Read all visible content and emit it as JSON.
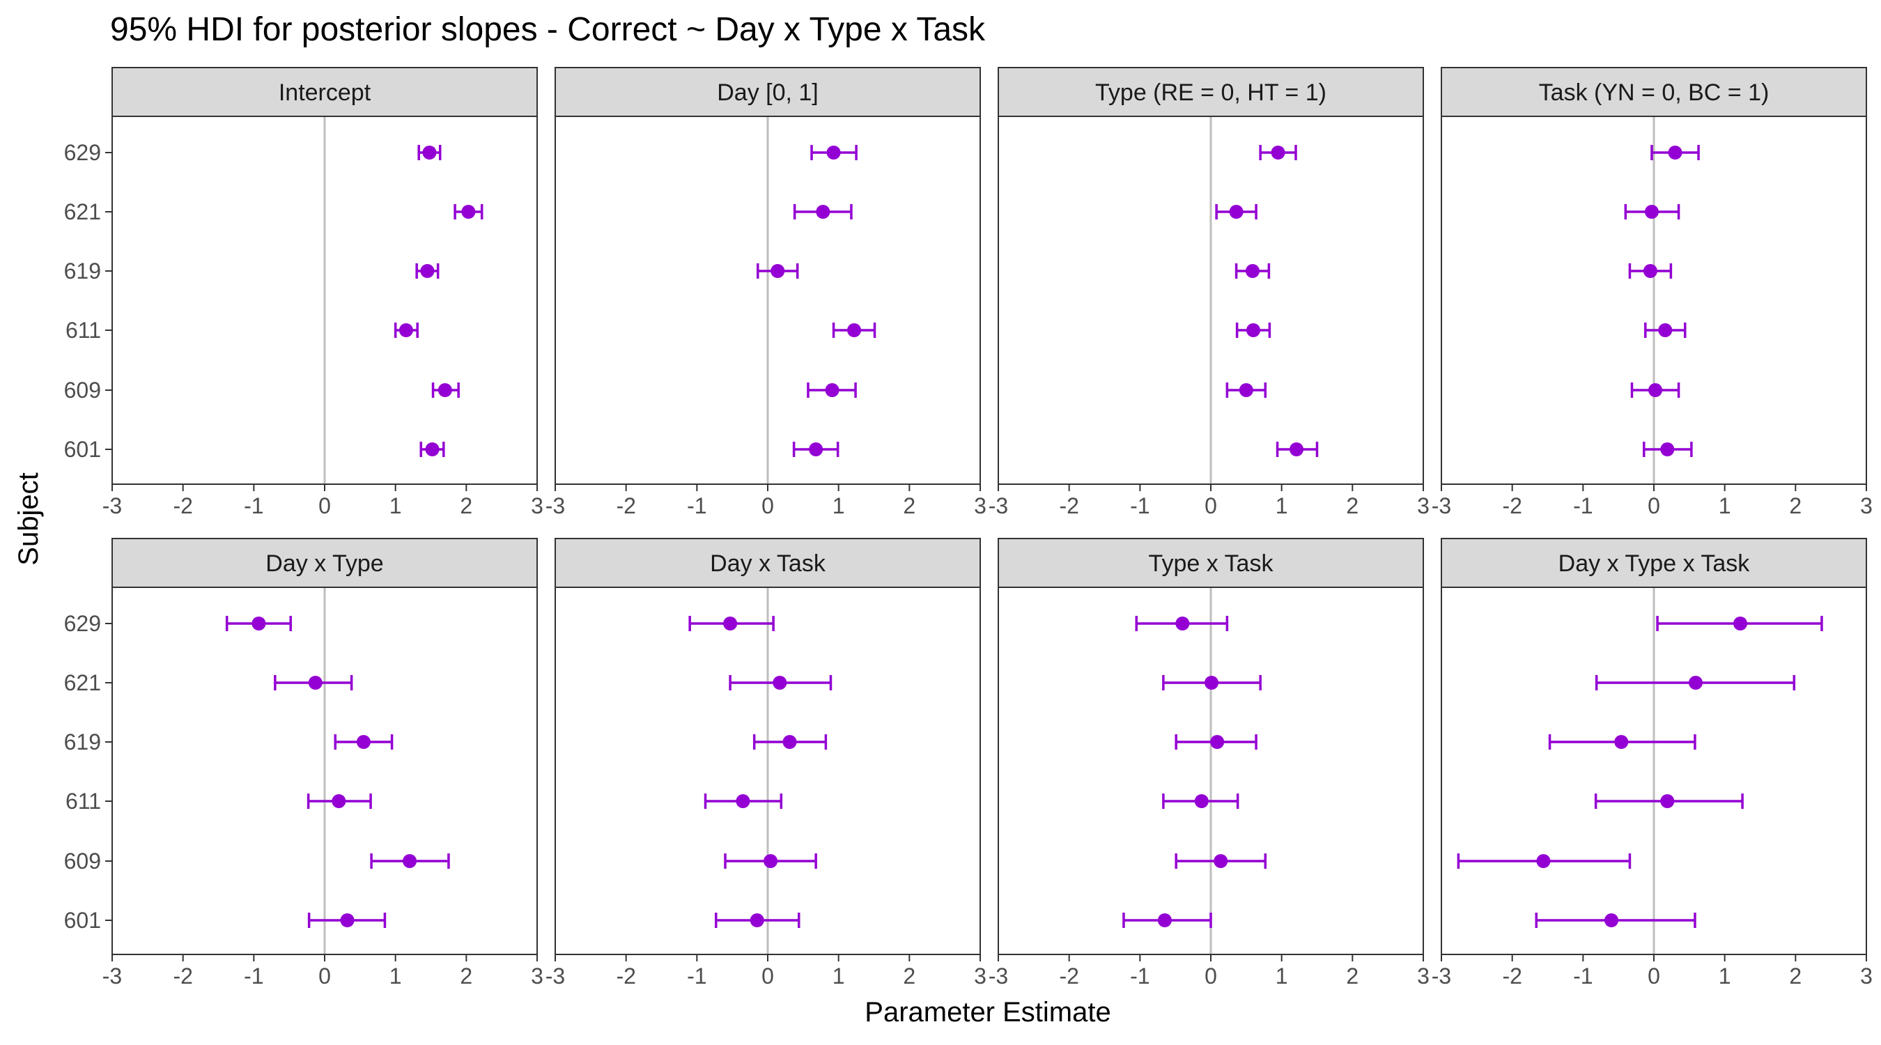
{
  "figure": {
    "title": "95% HDI for posterior slopes - Correct ~ Day x Type x Task",
    "xlabel": "Parameter Estimate",
    "ylabel": "Subject"
  },
  "colors": {
    "points": "#9400D3",
    "strip_fill": "#D9D9D9",
    "zero_line": "#BEBEBE",
    "border": "#333333"
  },
  "chart_data": {
    "type": "scatter",
    "subtype": "pointrange-facets",
    "subjects": [
      "629",
      "621",
      "619",
      "611",
      "609",
      "601"
    ],
    "xlim": [
      -3,
      3
    ],
    "xticks": [
      -3,
      -2,
      -1,
      0,
      1,
      2,
      3
    ],
    "facets": [
      {
        "name": "Intercept",
        "estimates": [
          1.48,
          2.03,
          1.45,
          1.15,
          1.7,
          1.52
        ],
        "lower": [
          1.33,
          1.84,
          1.3,
          1.0,
          1.53,
          1.36
        ],
        "upper": [
          1.63,
          2.22,
          1.6,
          1.31,
          1.89,
          1.68
        ]
      },
      {
        "name": "Day [0, 1]",
        "estimates": [
          0.93,
          0.78,
          0.14,
          1.22,
          0.91,
          0.68
        ],
        "lower": [
          0.62,
          0.38,
          -0.14,
          0.93,
          0.57,
          0.37
        ],
        "upper": [
          1.25,
          1.18,
          0.42,
          1.51,
          1.24,
          0.99
        ]
      },
      {
        "name": "Type (RE = 0, HT = 1)",
        "estimates": [
          0.95,
          0.36,
          0.59,
          0.6,
          0.5,
          1.21
        ],
        "lower": [
          0.7,
          0.08,
          0.36,
          0.37,
          0.23,
          0.94
        ],
        "upper": [
          1.2,
          0.64,
          0.82,
          0.83,
          0.77,
          1.5
        ]
      },
      {
        "name": "Task (YN = 0, BC = 1)",
        "estimates": [
          0.3,
          -0.03,
          -0.05,
          0.16,
          0.02,
          0.19
        ],
        "lower": [
          -0.03,
          -0.4,
          -0.34,
          -0.12,
          -0.31,
          -0.14
        ],
        "upper": [
          0.63,
          0.35,
          0.24,
          0.44,
          0.35,
          0.53
        ]
      },
      {
        "name": "Day x Type",
        "estimates": [
          -0.93,
          -0.13,
          0.55,
          0.2,
          1.2,
          0.32
        ],
        "lower": [
          -1.38,
          -0.7,
          0.15,
          -0.23,
          0.66,
          -0.22
        ],
        "upper": [
          -0.48,
          0.38,
          0.95,
          0.65,
          1.75,
          0.85
        ]
      },
      {
        "name": "Day x Task",
        "estimates": [
          -0.53,
          0.17,
          0.31,
          -0.35,
          0.04,
          -0.15
        ],
        "lower": [
          -1.1,
          -0.53,
          -0.19,
          -0.88,
          -0.6,
          -0.73
        ],
        "upper": [
          0.08,
          0.89,
          0.82,
          0.19,
          0.68,
          0.44
        ]
      },
      {
        "name": "Type x Task",
        "estimates": [
          -0.4,
          0.01,
          0.09,
          -0.13,
          0.14,
          -0.65
        ],
        "lower": [
          -1.05,
          -0.67,
          -0.49,
          -0.67,
          -0.49,
          -1.23
        ],
        "upper": [
          0.23,
          0.7,
          0.64,
          0.38,
          0.77,
          0.0
        ]
      },
      {
        "name": "Day x Type x Task",
        "estimates": [
          1.22,
          0.59,
          -0.46,
          0.19,
          -1.56,
          -0.6
        ],
        "lower": [
          0.05,
          -0.81,
          -1.47,
          -0.82,
          -2.76,
          -1.66
        ],
        "upper": [
          2.37,
          1.98,
          0.58,
          1.25,
          -0.34,
          0.58
        ]
      }
    ]
  }
}
